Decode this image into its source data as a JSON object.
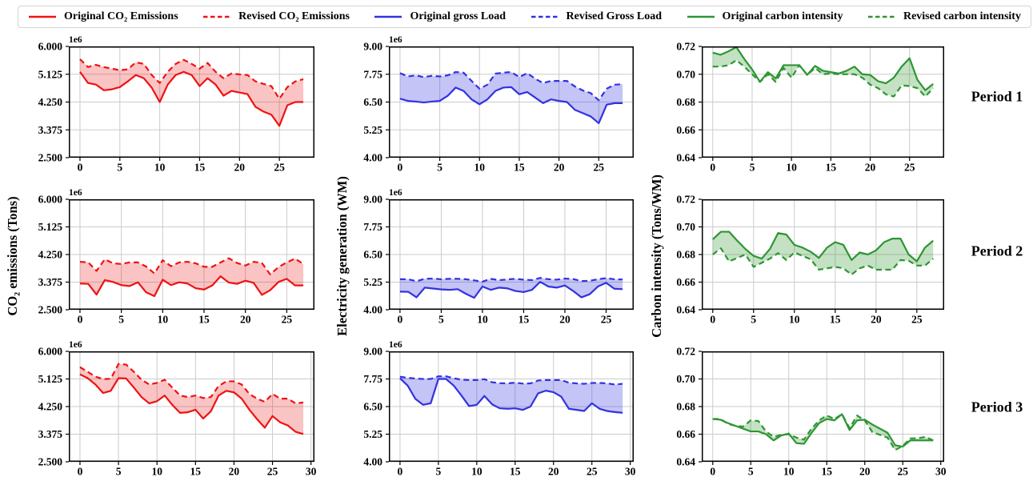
{
  "legend": {
    "items": [
      {
        "label": "Original CO₂ Emissions",
        "color": "#ef1212",
        "dash": "solid"
      },
      {
        "label": "Revised CO₂ Emissions",
        "color": "#ef1212",
        "dash": "dashed"
      },
      {
        "label": "Original gross Load",
        "color": "#3232e1",
        "dash": "solid"
      },
      {
        "label": "Revised Gross Load",
        "color": "#3232e1",
        "dash": "dashed"
      },
      {
        "label": "Original carbon intensity",
        "color": "#2d9632",
        "dash": "solid"
      },
      {
        "label": "Revised carbon intensity",
        "color": "#2d9632",
        "dash": "dashed"
      }
    ]
  },
  "axis_labels": {
    "col1": "CO₂ emissions (Tons)",
    "col2": "Electricity generation (WM)",
    "col3": "Carbon intensity (Tons/WM)"
  },
  "period_labels": [
    "Period 1",
    "Period 2",
    "Period 3"
  ],
  "colors": {
    "co2_line": "#ef1212",
    "co2_fill": "rgba(240,20,20,0.25)",
    "load_line": "#3232e1",
    "load_fill": "rgba(60,60,225,0.30)",
    "intensity_line": "#2d9632",
    "intensity_fill": "rgba(60,155,60,0.30)",
    "grid": "#cbcbcb",
    "axis": "#000000"
  },
  "chart_data": [
    {
      "type": "area",
      "period": "Period 1",
      "measure": "CO₂ emissions (Tons)",
      "offset_label": "1e6",
      "unit_multiplier": 1000000,
      "ylim": [
        2.5,
        6.0
      ],
      "ytick_values": [
        6.0,
        5.125,
        4.25,
        3.375,
        2.5
      ],
      "ytick_labels": [
        "6.000",
        "5.125",
        "4.250",
        "3.375",
        "2.500"
      ],
      "xticks": [
        0,
        5,
        10,
        15,
        20,
        25
      ],
      "x_values_are_indices": true,
      "line_color": "#ef1212",
      "fill_color": "rgba(240,20,20,0.25)",
      "series": [
        {
          "name": "Original CO₂ Emissions",
          "style": "solid",
          "values": [
            5.2,
            4.85,
            4.8,
            4.62,
            4.65,
            4.72,
            4.9,
            5.1,
            5.0,
            4.7,
            4.25,
            4.8,
            5.1,
            5.2,
            5.1,
            4.75,
            5.0,
            4.8,
            4.45,
            4.6,
            4.55,
            4.5,
            4.1,
            3.95,
            3.85,
            3.5,
            4.15,
            4.25,
            4.25
          ]
        },
        {
          "name": "Revised CO₂ Emissions",
          "style": "dashed",
          "values": [
            5.6,
            5.35,
            5.42,
            5.35,
            5.3,
            5.25,
            5.28,
            5.5,
            5.45,
            5.1,
            4.85,
            5.2,
            5.45,
            5.58,
            5.45,
            5.3,
            5.48,
            5.2,
            5.0,
            5.15,
            5.12,
            5.1,
            4.9,
            4.82,
            4.75,
            4.35,
            4.72,
            4.9,
            4.97
          ]
        }
      ]
    },
    {
      "type": "area",
      "period": "Period 1",
      "measure": "Electricity generation (WM)",
      "offset_label": "1e6",
      "unit_multiplier": 1000000,
      "ylim": [
        4.0,
        9.0
      ],
      "ytick_values": [
        9.0,
        7.75,
        6.5,
        5.25,
        4.0
      ],
      "ytick_labels": [
        "9.00",
        "7.75",
        "6.50",
        "5.25",
        "4.00"
      ],
      "xticks": [
        0,
        5,
        10,
        15,
        20,
        25
      ],
      "x_values_are_indices": true,
      "line_color": "#3232e1",
      "fill_color": "rgba(60,60,225,0.30)",
      "series": [
        {
          "name": "Original gross Load",
          "style": "solid",
          "values": [
            6.65,
            6.55,
            6.52,
            6.48,
            6.52,
            6.55,
            6.78,
            7.15,
            7.0,
            6.62,
            6.4,
            6.62,
            7.0,
            7.15,
            7.17,
            6.85,
            6.95,
            6.7,
            6.45,
            6.62,
            6.55,
            6.5,
            6.15,
            6.0,
            5.85,
            5.55,
            6.38,
            6.45,
            6.45
          ]
        },
        {
          "name": "Revised Gross Load",
          "style": "dashed",
          "values": [
            7.8,
            7.65,
            7.7,
            7.62,
            7.68,
            7.65,
            7.7,
            7.85,
            7.82,
            7.45,
            7.1,
            7.28,
            7.78,
            7.82,
            7.85,
            7.62,
            7.8,
            7.55,
            7.35,
            7.45,
            7.45,
            7.45,
            7.2,
            7.02,
            6.9,
            6.58,
            7.1,
            7.28,
            7.3
          ]
        }
      ]
    },
    {
      "type": "area",
      "period": "Period 1",
      "measure": "Carbon intensity (Tons/WM)",
      "offset_label": null,
      "unit_multiplier": 1,
      "ylim": [
        0.64,
        0.72
      ],
      "ytick_values": [
        0.72,
        0.7,
        0.68,
        0.66,
        0.64
      ],
      "ytick_labels": [
        "0.72",
        "0.70",
        "0.68",
        "0.66",
        "0.64"
      ],
      "xticks": [
        0,
        5,
        10,
        15,
        20,
        25
      ],
      "x_values_are_indices": true,
      "line_color": "#2d9632",
      "fill_color": "rgba(60,155,60,0.30)",
      "series": [
        {
          "name": "Original carbon intensity",
          "style": "solid",
          "values": [
            0.7155,
            0.714,
            0.7165,
            0.7195,
            0.711,
            0.7035,
            0.6945,
            0.7015,
            0.697,
            0.7065,
            0.7065,
            0.7065,
            0.6995,
            0.706,
            0.7025,
            0.7015,
            0.7005,
            0.7025,
            0.7055,
            0.7,
            0.6995,
            0.695,
            0.6935,
            0.6975,
            0.7055,
            0.7115,
            0.696,
            0.6885,
            0.693
          ]
        },
        {
          "name": "Revised carbon intensity",
          "style": "dashed",
          "values": [
            0.7055,
            0.7055,
            0.7065,
            0.71,
            0.7055,
            0.7,
            0.6945,
            0.7,
            0.6945,
            0.7045,
            0.6975,
            0.7065,
            0.6995,
            0.7045,
            0.7,
            0.7005,
            0.7,
            0.7,
            0.7,
            0.6975,
            0.6925,
            0.69,
            0.6855,
            0.684,
            0.692,
            0.6915,
            0.69,
            0.684,
            0.69
          ]
        }
      ]
    },
    {
      "type": "area",
      "period": "Period 2",
      "measure": "CO₂ emissions (Tons)",
      "offset_label": "1e6",
      "unit_multiplier": 1000000,
      "ylim": [
        2.5,
        6.0
      ],
      "ytick_values": [
        6.0,
        5.125,
        4.25,
        3.375,
        2.5
      ],
      "ytick_labels": [
        "6.000",
        "5.125",
        "4.250",
        "3.375",
        "2.500"
      ],
      "xticks": [
        0,
        5,
        10,
        15,
        20,
        25
      ],
      "x_values_are_indices": true,
      "line_color": "#ef1212",
      "fill_color": "rgba(240,20,20,0.25)",
      "series": [
        {
          "name": "Original CO₂ Emissions",
          "style": "solid",
          "values": [
            3.33,
            3.32,
            2.98,
            3.44,
            3.38,
            3.28,
            3.25,
            3.37,
            3.05,
            2.93,
            3.45,
            3.28,
            3.37,
            3.33,
            3.18,
            3.14,
            3.27,
            3.56,
            3.36,
            3.32,
            3.42,
            3.35,
            2.97,
            3.12,
            3.38,
            3.48,
            3.27,
            3.27
          ]
        },
        {
          "name": "Revised CO₂ Emissions",
          "style": "dashed",
          "values": [
            4.02,
            4.0,
            3.73,
            4.1,
            3.97,
            3.95,
            4.0,
            4.0,
            3.87,
            3.65,
            4.07,
            3.88,
            4.0,
            4.02,
            3.97,
            3.86,
            3.86,
            4.0,
            4.13,
            3.98,
            3.9,
            4.02,
            3.98,
            3.62,
            3.85,
            4.0,
            4.12,
            3.95
          ]
        }
      ]
    },
    {
      "type": "area",
      "period": "Period 2",
      "measure": "Electricity generation (WM)",
      "offset_label": "1e6",
      "unit_multiplier": 1000000,
      "ylim": [
        4.0,
        9.0
      ],
      "ytick_values": [
        9.0,
        7.75,
        6.5,
        5.25,
        4.0
      ],
      "ytick_labels": [
        "9.00",
        "7.75",
        "6.50",
        "5.25",
        "4.00"
      ],
      "xticks": [
        0,
        5,
        10,
        15,
        20,
        25
      ],
      "x_values_are_indices": true,
      "line_color": "#3232e1",
      "fill_color": "rgba(60,60,225,0.30)",
      "series": [
        {
          "name": "Original gross Load",
          "style": "solid",
          "values": [
            4.82,
            4.81,
            4.56,
            5.0,
            4.96,
            4.92,
            4.9,
            4.93,
            4.72,
            4.54,
            5.05,
            4.9,
            5.0,
            4.97,
            4.85,
            4.8,
            4.9,
            5.26,
            5.05,
            5.0,
            5.1,
            4.85,
            4.56,
            4.7,
            5.05,
            5.22,
            4.95,
            4.93
          ]
        },
        {
          "name": "Revised Gross Load",
          "style": "dashed",
          "values": [
            5.38,
            5.38,
            5.29,
            5.4,
            5.41,
            5.38,
            5.4,
            5.4,
            5.38,
            5.33,
            5.27,
            5.4,
            5.34,
            5.37,
            5.4,
            5.36,
            5.34,
            5.44,
            5.38,
            5.36,
            5.41,
            5.39,
            5.3,
            5.31,
            5.38,
            5.43,
            5.38,
            5.37
          ]
        }
      ]
    },
    {
      "type": "area",
      "period": "Period 2",
      "measure": "Carbon intensity (Tons/WM)",
      "offset_label": null,
      "unit_multiplier": 1,
      "ylim": [
        0.64,
        0.72
      ],
      "ytick_values": [
        0.72,
        0.7,
        0.68,
        0.66,
        0.64
      ],
      "ytick_labels": [
        "0.72",
        "0.70",
        "0.68",
        "0.66",
        "0.64"
      ],
      "xticks": [
        0,
        5,
        10,
        15,
        20,
        25
      ],
      "x_values_are_indices": true,
      "line_color": "#2d9632",
      "fill_color": "rgba(60,155,60,0.30)",
      "series": [
        {
          "name": "Original carbon intensity",
          "style": "solid",
          "values": [
            0.691,
            0.6965,
            0.6965,
            0.69,
            0.684,
            0.679,
            0.677,
            0.684,
            0.6955,
            0.6945,
            0.687,
            0.685,
            0.682,
            0.6775,
            0.685,
            0.689,
            0.687,
            0.676,
            0.6815,
            0.68,
            0.683,
            0.689,
            0.6915,
            0.6915,
            0.68,
            0.675,
            0.685,
            0.69
          ]
        },
        {
          "name": "Revised carbon intensity",
          "style": "dashed",
          "values": [
            0.68,
            0.6845,
            0.675,
            0.6775,
            0.68,
            0.671,
            0.674,
            0.677,
            0.681,
            0.676,
            0.6815,
            0.679,
            0.6765,
            0.669,
            0.67,
            0.671,
            0.67,
            0.6655,
            0.67,
            0.672,
            0.669,
            0.669,
            0.669,
            0.676,
            0.6755,
            0.672,
            0.672,
            0.677
          ]
        }
      ]
    },
    {
      "type": "area",
      "period": "Period 3",
      "measure": "CO₂ emissions (Tons)",
      "offset_label": "1e6",
      "unit_multiplier": 1000000,
      "ylim": [
        2.5,
        6.0
      ],
      "ytick_values": [
        6.0,
        5.125,
        4.25,
        3.375,
        2.5
      ],
      "ytick_labels": [
        "6.000",
        "5.125",
        "4.250",
        "3.375",
        "2.500"
      ],
      "xticks": [
        0,
        5,
        10,
        15,
        20,
        25,
        30
      ],
      "x_values_are_indices": true,
      "line_color": "#ef1212",
      "fill_color": "rgba(240,20,20,0.25)",
      "series": [
        {
          "name": "Original CO₂ Emissions",
          "style": "solid",
          "values": [
            5.27,
            5.15,
            4.95,
            4.68,
            4.75,
            5.15,
            5.14,
            4.85,
            4.55,
            4.35,
            4.42,
            4.6,
            4.3,
            4.05,
            4.07,
            4.15,
            3.87,
            4.1,
            4.6,
            4.75,
            4.7,
            4.5,
            4.15,
            3.85,
            3.58,
            3.95,
            3.75,
            3.65,
            3.45,
            3.38
          ]
        },
        {
          "name": "Revised CO₂ Emissions",
          "style": "dashed",
          "values": [
            5.5,
            5.35,
            5.2,
            5.12,
            5.13,
            5.6,
            5.58,
            5.35,
            5.1,
            4.95,
            5.0,
            5.1,
            4.85,
            4.6,
            4.55,
            4.6,
            4.52,
            4.55,
            4.9,
            5.05,
            5.05,
            4.95,
            4.65,
            4.5,
            4.4,
            4.65,
            4.5,
            4.5,
            4.35,
            4.38
          ]
        }
      ]
    },
    {
      "type": "area",
      "period": "Period 3",
      "measure": "Electricity generation (WM)",
      "offset_label": "1e6",
      "unit_multiplier": 1000000,
      "ylim": [
        4.0,
        9.0
      ],
      "ytick_values": [
        9.0,
        7.75,
        6.5,
        5.25,
        4.0
      ],
      "ytick_labels": [
        "9.00",
        "7.75",
        "6.50",
        "5.25",
        "4.00"
      ],
      "xticks": [
        0,
        5,
        10,
        15,
        20,
        25,
        30
      ],
      "x_values_are_indices": true,
      "line_color": "#3232e1",
      "fill_color": "rgba(60,60,225,0.30)",
      "series": [
        {
          "name": "Original gross Load",
          "style": "solid",
          "values": [
            7.78,
            7.45,
            6.85,
            6.58,
            6.65,
            7.75,
            7.75,
            7.45,
            7.0,
            6.52,
            6.58,
            6.98,
            6.6,
            6.42,
            6.4,
            6.42,
            6.35,
            6.5,
            7.1,
            7.22,
            7.15,
            6.95,
            6.4,
            6.35,
            6.3,
            6.65,
            6.4,
            6.3,
            6.25,
            6.22
          ]
        },
        {
          "name": "Revised Gross Load",
          "style": "dashed",
          "values": [
            7.85,
            7.8,
            7.77,
            7.75,
            7.75,
            7.87,
            7.87,
            7.78,
            7.72,
            7.7,
            7.7,
            7.74,
            7.6,
            7.56,
            7.55,
            7.58,
            7.54,
            7.55,
            7.68,
            7.7,
            7.7,
            7.7,
            7.58,
            7.55,
            7.53,
            7.57,
            7.57,
            7.55,
            7.5,
            7.53
          ]
        }
      ]
    },
    {
      "type": "area",
      "period": "Period 3",
      "measure": "Carbon intensity (Tons/WM)",
      "offset_label": null,
      "unit_multiplier": 1,
      "ylim": [
        0.64,
        0.72
      ],
      "ytick_values": [
        0.72,
        0.7,
        0.68,
        0.66,
        0.64
      ],
      "ytick_labels": [
        "0.72",
        "0.70",
        "0.68",
        "0.66",
        "0.64"
      ],
      "xticks": [
        0,
        5,
        10,
        15,
        20,
        25,
        30
      ],
      "x_values_are_indices": true,
      "line_color": "#2d9632",
      "fill_color": "rgba(60,155,60,0.30)",
      "series": [
        {
          "name": "Original carbon intensity",
          "style": "solid",
          "values": [
            0.671,
            0.6705,
            0.668,
            0.666,
            0.664,
            0.662,
            0.662,
            0.66,
            0.6555,
            0.659,
            0.6605,
            0.6535,
            0.653,
            0.661,
            0.668,
            0.671,
            0.67,
            0.6745,
            0.663,
            0.67,
            0.6705,
            0.667,
            0.664,
            0.661,
            0.652,
            0.651,
            0.6555,
            0.6555,
            0.6555,
            0.6555
          ]
        },
        {
          "name": "Revised carbon intensity",
          "style": "dashed",
          "values": [
            0.671,
            0.671,
            0.6675,
            0.666,
            0.6655,
            0.67,
            0.6695,
            0.662,
            0.658,
            0.6595,
            0.66,
            0.6575,
            0.656,
            0.664,
            0.67,
            0.6735,
            0.671,
            0.6745,
            0.6645,
            0.6735,
            0.67,
            0.6615,
            0.6595,
            0.6575,
            0.6485,
            0.6515,
            0.657,
            0.657,
            0.658,
            0.6555
          ]
        }
      ]
    }
  ]
}
